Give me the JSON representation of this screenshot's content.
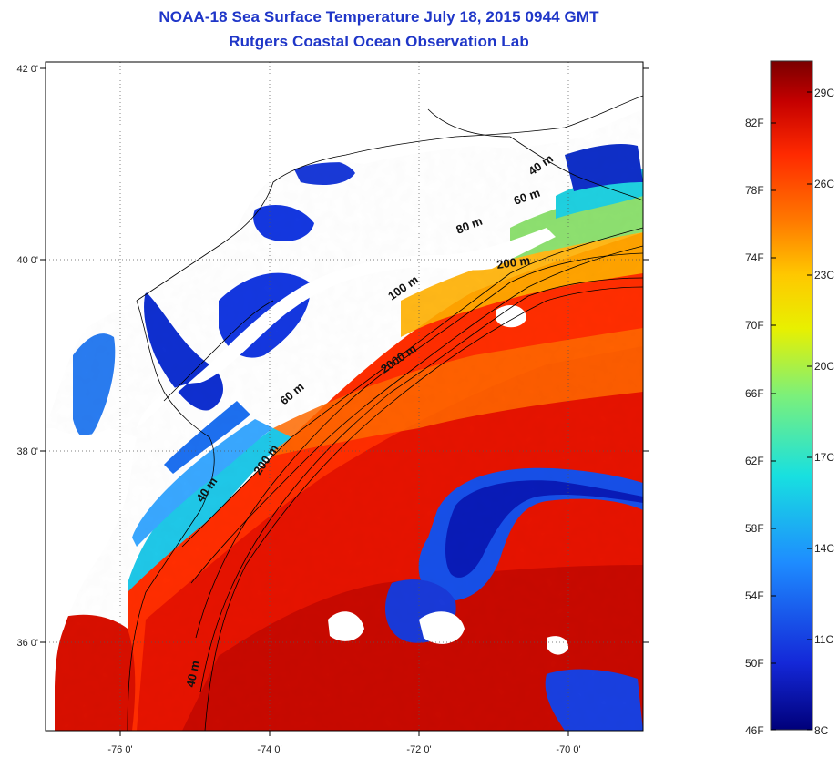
{
  "title": {
    "line1": "NOAA-18 Sea Surface Temperature July 18, 2015 0944 GMT",
    "line2": "Rutgers Coastal Ocean Observation Lab"
  },
  "map": {
    "lat_ticks": [
      "42 0'",
      "40 0'",
      "38 0'",
      "36 0'"
    ],
    "lon_ticks": [
      "-76 0'",
      "-74 0'",
      "-72 0'",
      "-70 0'"
    ],
    "grid": true,
    "contour_labels": [
      "40 m",
      "60 m",
      "80 m",
      "200 m",
      "100 m",
      "2000 m",
      "60 m",
      "200 m",
      "40 m",
      "40 m"
    ]
  },
  "colorbar": {
    "fahrenheit_labels": [
      "82F",
      "78F",
      "74F",
      "70F",
      "66F",
      "62F",
      "58F",
      "54F",
      "50F",
      "46F"
    ],
    "celsius_labels": [
      "29C",
      "26C",
      "23C",
      "20C",
      "17C",
      "14C",
      "11C",
      "8C"
    ],
    "colors": [
      "#7a0000",
      "#c40000",
      "#ff2a00",
      "#ff7a00",
      "#ffc800",
      "#e8f000",
      "#7cf07a",
      "#18e0e0",
      "#1e8cff",
      "#1428d8",
      "#00007a"
    ]
  }
}
